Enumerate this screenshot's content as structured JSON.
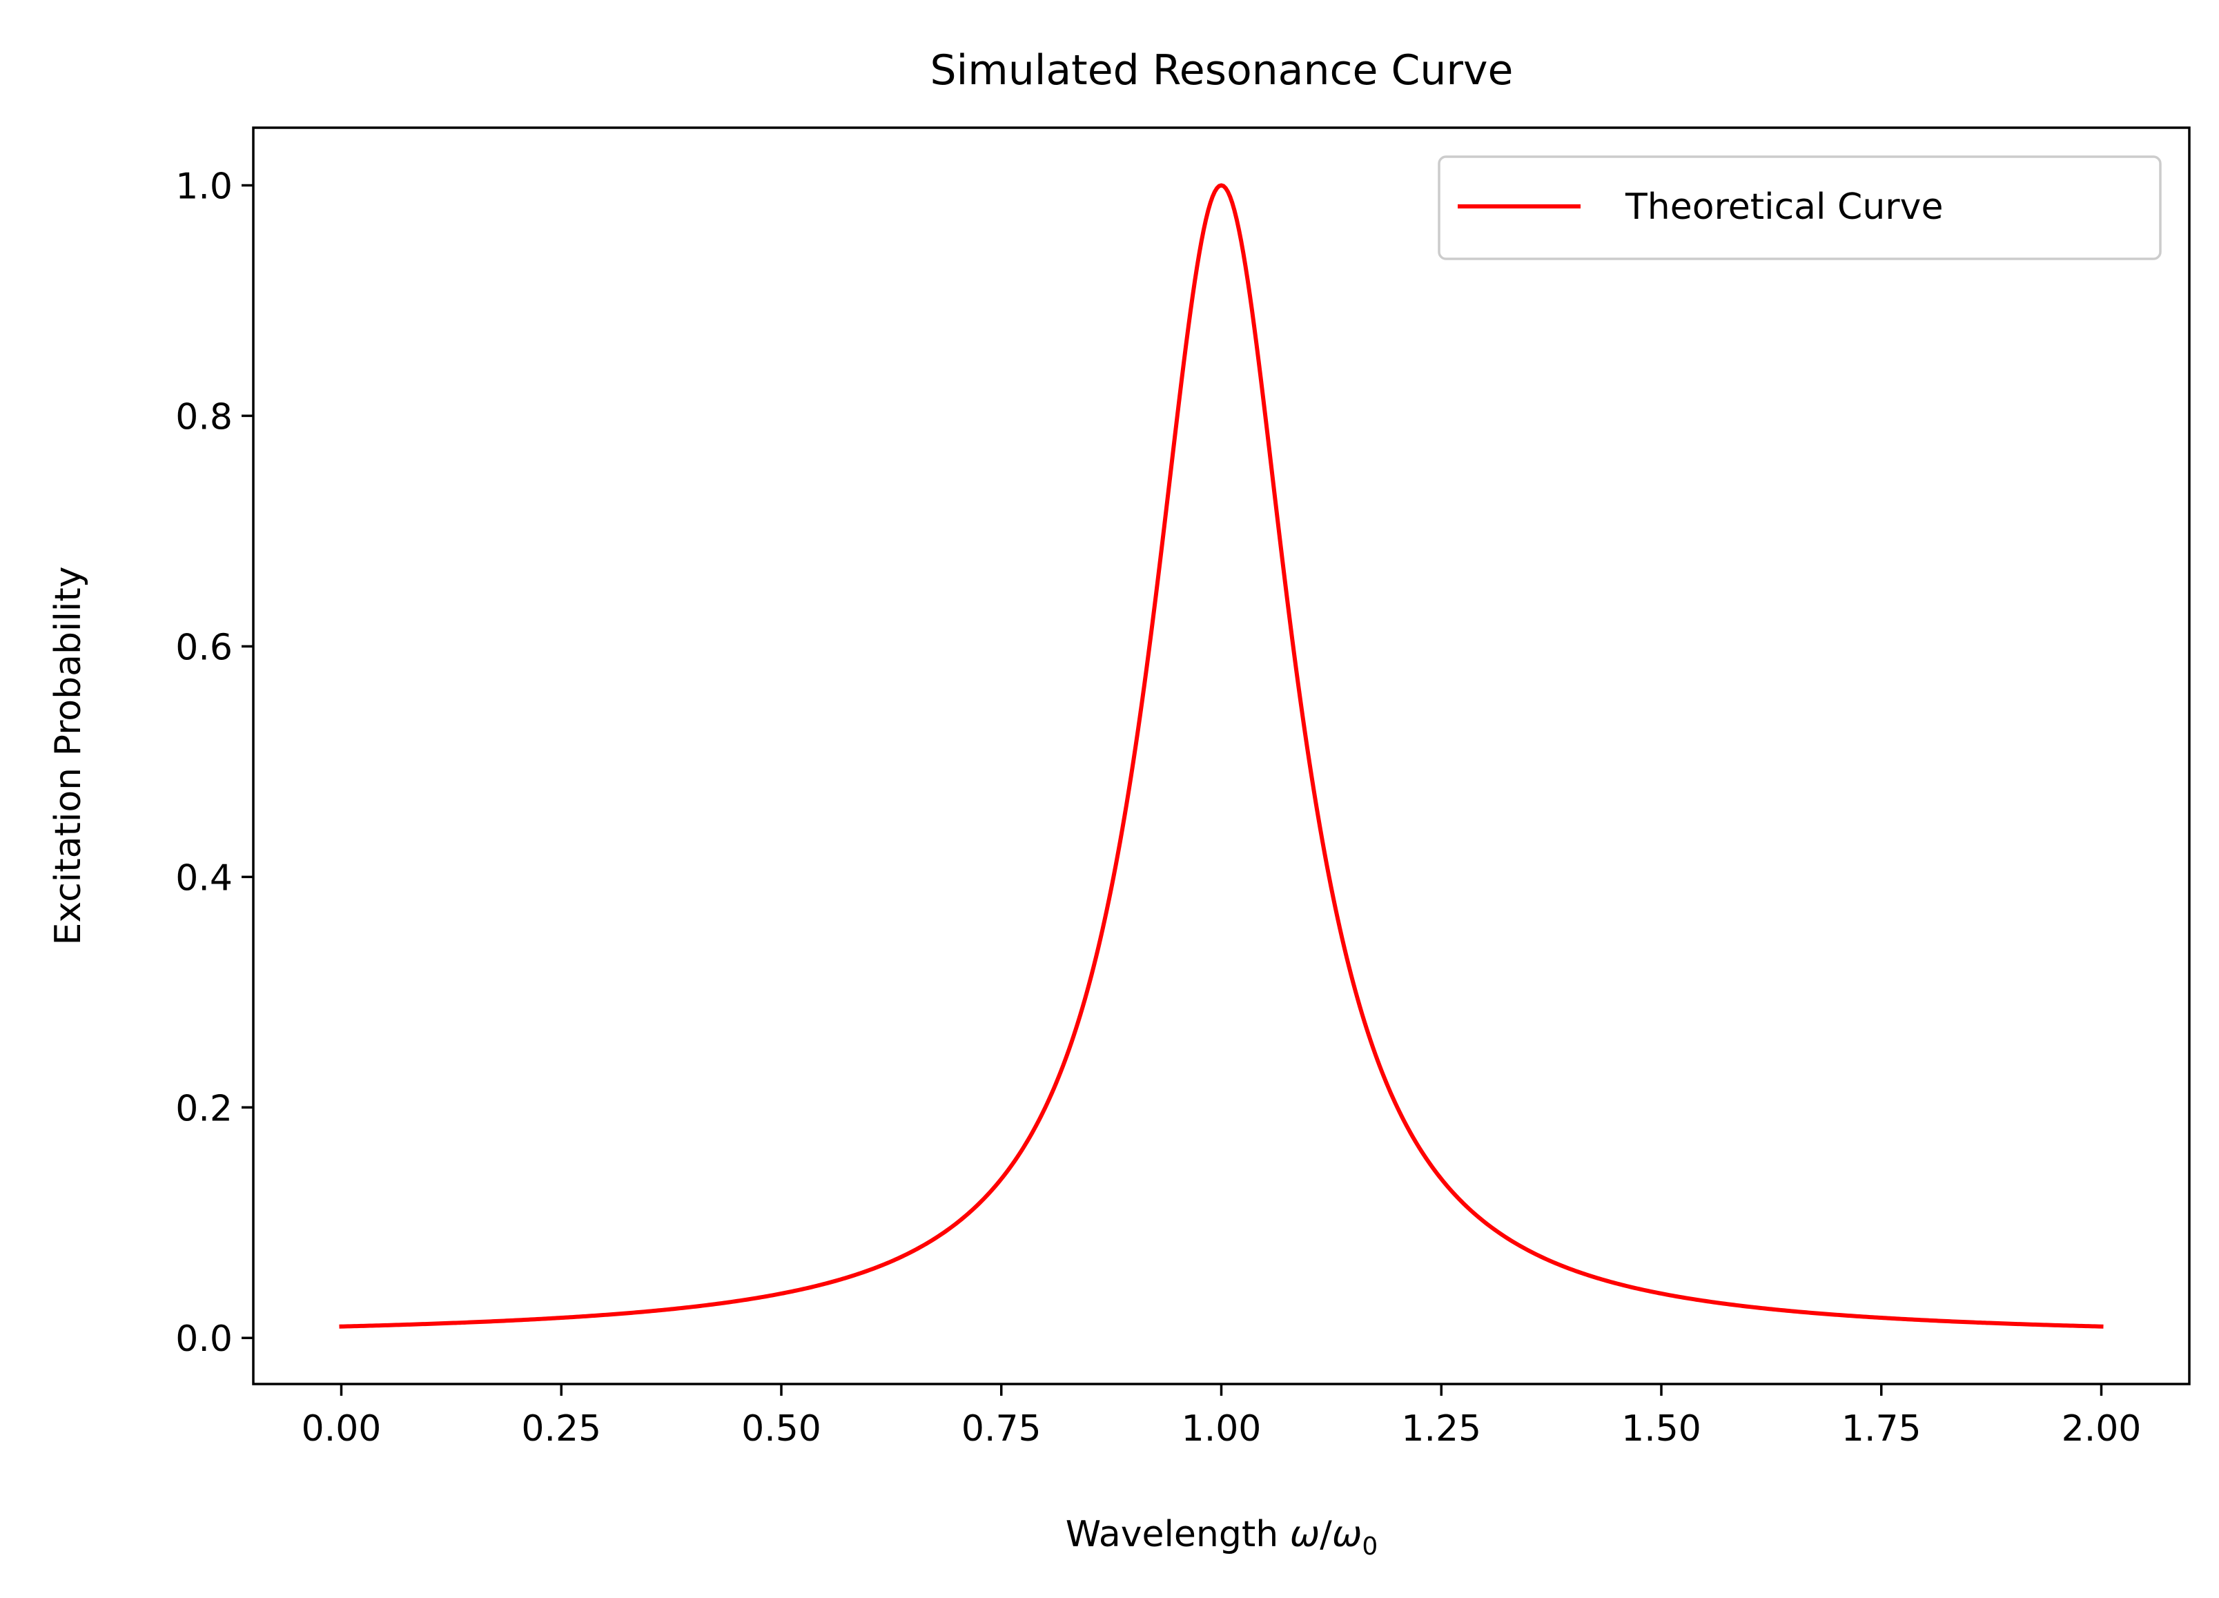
{
  "chart_data": {
    "type": "line",
    "title": "Simulated Resonance Curve",
    "xlabel": "Wavelength ω/ω₀",
    "xlabel_main": "Wavelength ",
    "xlabel_omega": "ω",
    "xlabel_slash": "/",
    "xlabel_omega0": "ω",
    "xlabel_sub": "0",
    "ylabel": "Excitation Probability",
    "xlim": [
      -0.1,
      2.1
    ],
    "ylim": [
      -0.04,
      1.05
    ],
    "xticks": [
      0.0,
      0.25,
      0.5,
      0.75,
      1.0,
      1.25,
      1.5,
      1.75,
      2.0
    ],
    "xtick_labels": [
      "0.00",
      "0.25",
      "0.50",
      "0.75",
      "1.00",
      "1.25",
      "1.50",
      "1.75",
      "2.00"
    ],
    "yticks": [
      0.0,
      0.2,
      0.4,
      0.6,
      0.8,
      1.0
    ],
    "ytick_labels": [
      "0.0",
      "0.2",
      "0.4",
      "0.6",
      "0.8",
      "1.0"
    ],
    "grid": false,
    "legend_position": "top-right",
    "series": [
      {
        "name": "Theoretical Curve",
        "color": "#ff0000",
        "x": [
          0.0,
          0.1,
          0.2,
          0.3,
          0.4,
          0.5,
          0.6,
          0.65,
          0.7,
          0.75,
          0.8,
          0.85,
          0.9,
          0.95,
          1.0,
          1.05,
          1.1,
          1.15,
          1.2,
          1.25,
          1.3,
          1.35,
          1.4,
          1.5,
          1.6,
          1.7,
          1.8,
          1.9,
          2.0
        ],
        "y": [
          0.01,
          0.012,
          0.015,
          0.02,
          0.028,
          0.038,
          0.059,
          0.075,
          0.1,
          0.138,
          0.2,
          0.308,
          0.5,
          0.8,
          1.0,
          0.8,
          0.5,
          0.308,
          0.2,
          0.138,
          0.1,
          0.075,
          0.059,
          0.038,
          0.028,
          0.02,
          0.015,
          0.012,
          0.01
        ]
      }
    ]
  }
}
